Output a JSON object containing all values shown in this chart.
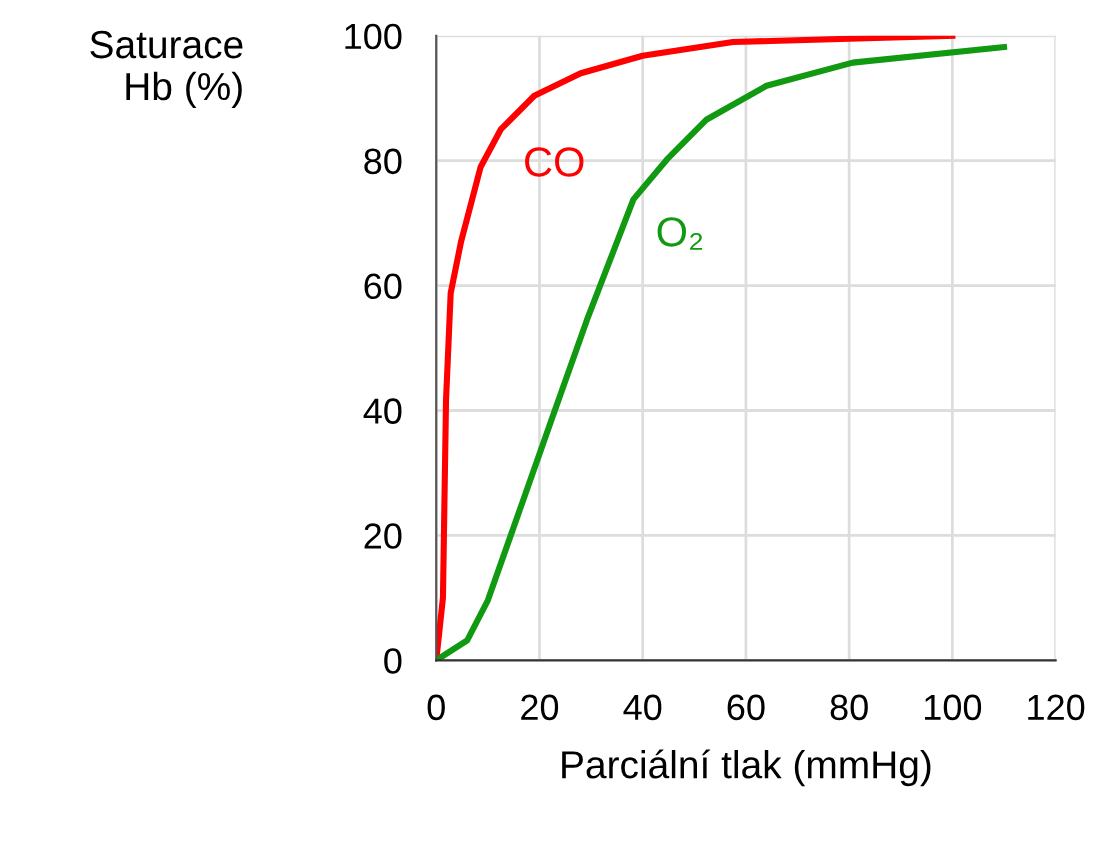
{
  "chart_data": {
    "type": "line",
    "xlabel": "Parciální tlak (mmHg)",
    "ylabel": "Saturace\nHb (%)",
    "series": [
      {
        "name": "CO",
        "color": "#ff0000",
        "x": [
          0,
          1.3,
          1.9,
          2.8,
          4.8,
          8.6,
          12.5,
          19,
          28,
          40,
          57.5,
          100
        ],
        "values": [
          0,
          10,
          41.7,
          58.8,
          67,
          79,
          85,
          90.4,
          94,
          96.8,
          99,
          100
        ]
      },
      {
        "name": "O₂",
        "color": "#119911",
        "x": [
          0,
          6,
          10,
          16.4,
          22.8,
          29.2,
          38.2,
          44.7,
          52.4,
          64,
          80.7,
          110
        ],
        "values": [
          0,
          3.2,
          9.6,
          24.6,
          39.6,
          54.5,
          73.8,
          80.2,
          86.6,
          92,
          95.7,
          98.2
        ]
      }
    ],
    "xlim": [
      0,
      120
    ],
    "xticks": [
      0,
      20,
      40,
      60,
      80,
      100,
      120
    ],
    "ylim": [
      0,
      100
    ],
    "yticks": [
      0,
      20,
      40,
      60,
      80,
      100
    ],
    "grid": true,
    "legend": false
  }
}
